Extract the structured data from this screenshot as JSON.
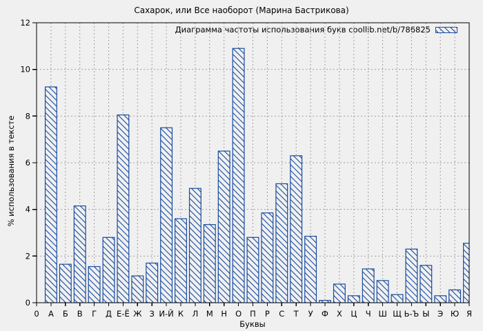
{
  "window": {
    "background": "#f0f0f0"
  },
  "chart_data": {
    "type": "bar",
    "title": "Сахарок, или Все наоборот (Марина Бастрикова)",
    "legend": "Диаграмма частоты использования букв coollib.net/b/786825",
    "legend_position": "top-right-inside",
    "xlabel": "Буквы",
    "ylabel": "% использования в тексте",
    "origin_tick_label": "0",
    "ylim": [
      0,
      12
    ],
    "ytick_step": 2,
    "ytick_labels": [
      "0",
      "2",
      "4",
      "6",
      "8",
      "10",
      "12"
    ],
    "grid": true,
    "bar_style": "hatched-diagonal",
    "categories": [
      "А",
      "Б",
      "В",
      "Г",
      "Д",
      "Е-Ё",
      "Ж",
      "З",
      "И-Й",
      "К",
      "Л",
      "М",
      "Н",
      "О",
      "П",
      "Р",
      "С",
      "Т",
      "У",
      "Ф",
      "Х",
      "Ц",
      "Ч",
      "Ш",
      "Щ",
      "Ь-Ъ",
      "Ы",
      "Э",
      "Ю",
      "Я"
    ],
    "values": [
      9.25,
      1.65,
      4.15,
      1.55,
      2.8,
      8.05,
      1.15,
      1.7,
      7.5,
      3.6,
      4.9,
      3.35,
      6.5,
      10.9,
      2.8,
      3.85,
      5.1,
      6.3,
      2.85,
      0.1,
      0.8,
      0.3,
      1.45,
      0.95,
      0.35,
      2.3,
      1.6,
      0.3,
      0.55,
      2.55
    ]
  },
  "colors": {
    "bar": "#164a9e",
    "bar_fill_bg": "#f1f1f1",
    "grid": "#9e9e9e",
    "axis": "#000000",
    "text": "#000000",
    "background": "#f0f0f0"
  }
}
